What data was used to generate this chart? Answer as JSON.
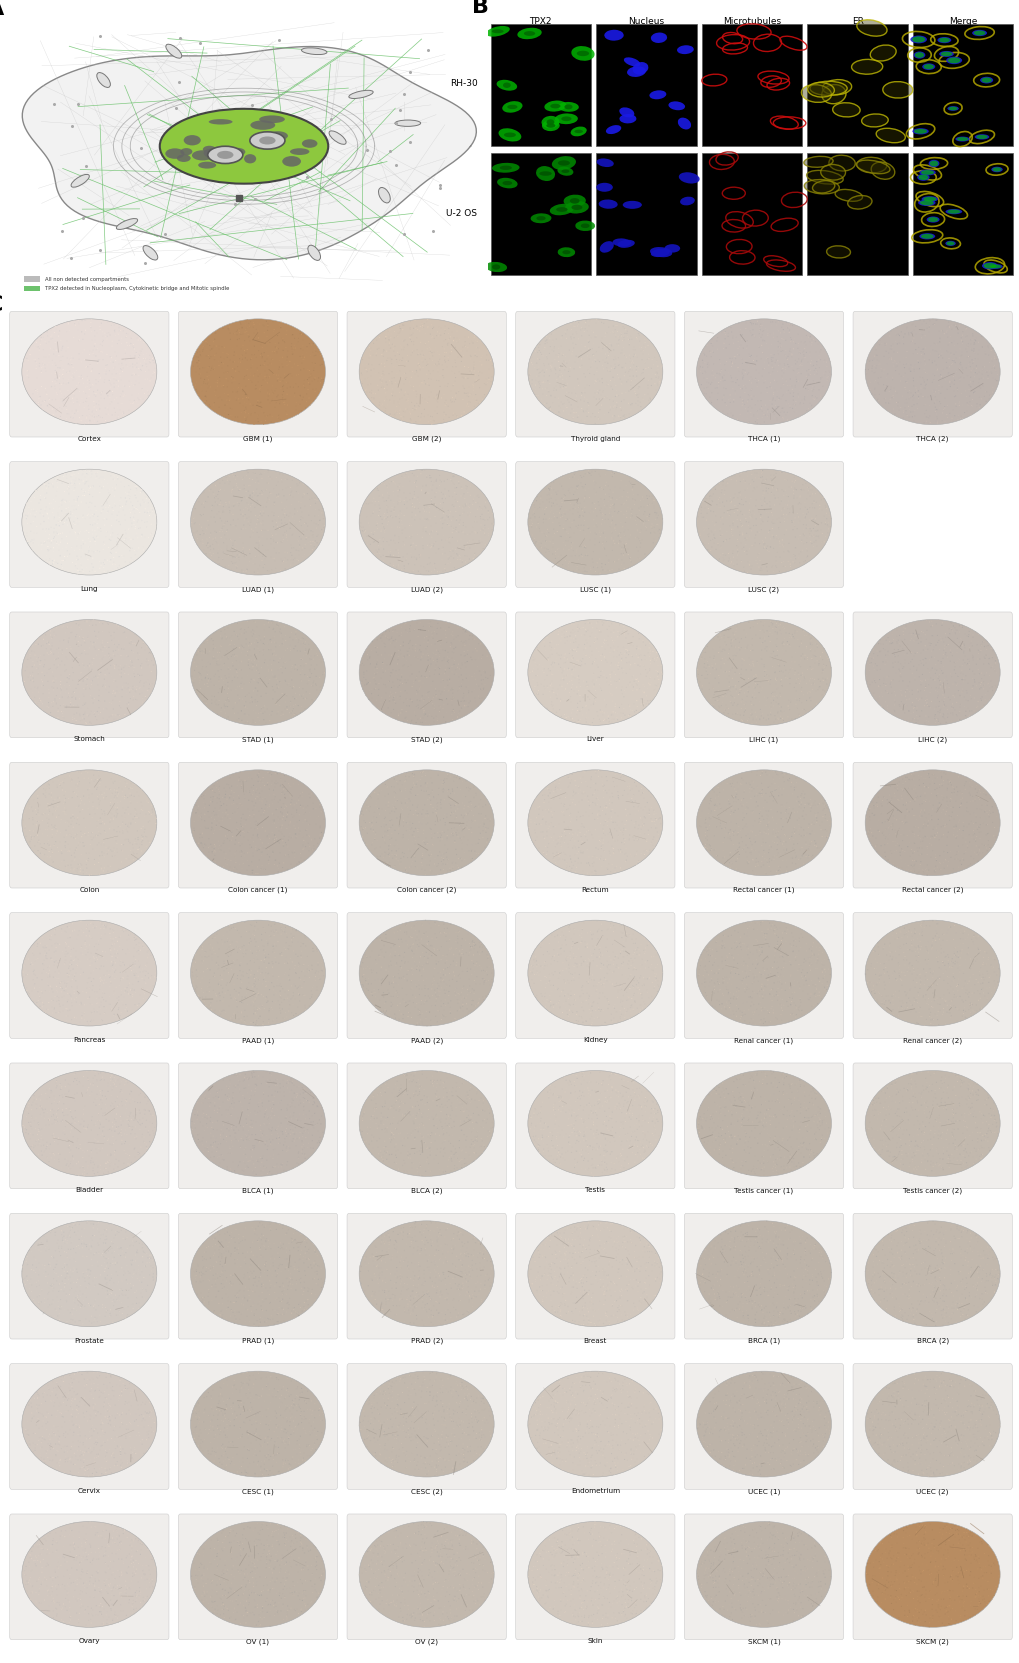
{
  "panel_A_label": "A",
  "panel_B_label": "B",
  "panel_C_label": "C",
  "panel_B_col_headers": [
    "TPX2",
    "Nucleus",
    "Microtubules",
    "ER",
    "Merge"
  ],
  "panel_B_row_labels": [
    "RH-30",
    "U-2 OS"
  ],
  "panel_C_rows": [
    [
      "Cortex",
      "GBM (1)",
      "GBM (2)",
      "Thyroid gland",
      "THCA (1)",
      "THCA (2)"
    ],
    [
      "Lung",
      "LUAD (1)",
      "LUAD (2)",
      "LUSC (1)",
      "LUSC (2)",
      ""
    ],
    [
      "Stomach",
      "STAD (1)",
      "STAD (2)",
      "Liver",
      "LIHC (1)",
      "LIHC (2)"
    ],
    [
      "Colon",
      "Colon cancer (1)",
      "Colon cancer (2)",
      "Rectum",
      "Rectal cancer (1)",
      "Rectal cancer (2)"
    ],
    [
      "Pancreas",
      "PAAD (1)",
      "PAAD (2)",
      "Kidney",
      "Renal cancer (1)",
      "Renal cancer (2)"
    ],
    [
      "Bladder",
      "BLCA (1)",
      "BLCA (2)",
      "Testis",
      "Testis cancer (1)",
      "Testis cancer (2)"
    ],
    [
      "Prostate",
      "PRAD (1)",
      "PRAD (2)",
      "Breast",
      "BRCA (1)",
      "BRCA (2)"
    ],
    [
      "Cervix",
      "CESC (1)",
      "CESC (2)",
      "Endometrium",
      "UCEC (1)",
      "UCEC (2)"
    ],
    [
      "Ovary",
      "OV (1)",
      "OV (2)",
      "Skin",
      "SKCM (1)",
      "SKCM (2)"
    ]
  ],
  "legend_gray": "All non detected compartments",
  "legend_green": "TPX2 detected in Nucleoplasm, Cytokinetic bridge and Mitotic spindle",
  "background_color": "#ffffff",
  "fig_width": 10.2,
  "fig_height": 16.63,
  "dpi": 100
}
